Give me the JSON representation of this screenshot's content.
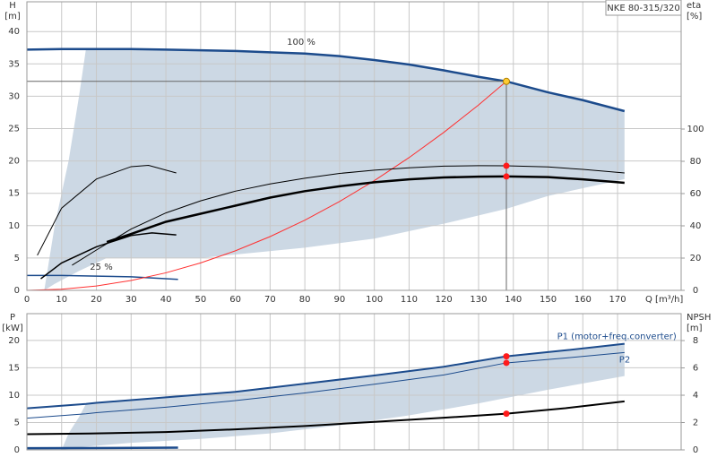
{
  "chart_data": [
    {
      "type": "line",
      "title": "NKE 80-315/320",
      "xlabel": "Q [m³/h]",
      "ylabel": "H",
      "ylabel_unit": "[m]",
      "y2label": "eta",
      "y2label_unit": "[%]",
      "xlim": [
        0,
        188.3
      ],
      "ylim": [
        0,
        44.6
      ],
      "y2lim": [
        0,
        178.9
      ],
      "xticks": [
        0,
        10,
        20,
        30,
        40,
        50,
        60,
        70,
        80,
        90,
        100,
        110,
        120,
        130,
        140,
        150,
        160,
        170
      ],
      "yticks": [
        0,
        5,
        10,
        15,
        20,
        25,
        30,
        35,
        40
      ],
      "y2ticks": [
        0,
        20,
        40,
        60,
        80,
        100
      ],
      "xtick_labels": true,
      "grid": true,
      "annotations": [
        "100 %",
        "25 %"
      ],
      "regions": [
        {
          "color": "#ccd8e4",
          "x": [
            17,
            20,
            30,
            40,
            50,
            60,
            70,
            80,
            90,
            100,
            110,
            120,
            130,
            138,
            150,
            160,
            172,
            172,
            150,
            138,
            120,
            100,
            80,
            50,
            23,
            15,
            8,
            5,
            8,
            12,
            15
          ],
          "values": [
            37.3,
            37.3,
            37.3,
            37.2,
            37.1,
            37.0,
            36.8,
            36.6,
            36.2,
            35.6,
            34.9,
            34.0,
            33.0,
            32.3,
            30.6,
            29.4,
            27.7,
            17.2,
            14.6,
            12.6,
            10.3,
            8,
            6.6,
            5,
            5,
            3,
            1,
            0,
            10,
            20,
            30
          ]
        }
      ],
      "series": [
        {
          "color": "#1c4b8c",
          "width": 2.5,
          "axis": "y",
          "x": [
            0,
            10,
            20,
            30,
            40,
            50,
            60,
            70,
            80,
            90,
            100,
            110,
            120,
            130,
            138,
            150,
            160,
            172
          ],
          "values": [
            37.2,
            37.3,
            37.3,
            37.3,
            37.2,
            37.1,
            37.0,
            36.8,
            36.6,
            36.2,
            35.6,
            34.9,
            34.0,
            33.0,
            32.3,
            30.6,
            29.4,
            27.7
          ]
        },
        {
          "color": "#1c4b8c",
          "width": 1.5,
          "axis": "y",
          "x": [
            0,
            10,
            20,
            30,
            43.5
          ],
          "values": [
            2.3,
            2.3,
            2.2,
            2.1,
            1.7
          ]
        },
        {
          "color": "#ff3030",
          "width": 1,
          "axis": "y",
          "x": [
            0,
            10,
            20,
            30,
            40,
            50,
            60,
            70,
            80,
            90,
            100,
            110,
            120,
            130,
            138
          ],
          "values": [
            0,
            0.17,
            0.68,
            1.53,
            2.71,
            4.24,
            6.11,
            8.31,
            10.85,
            13.74,
            16.96,
            20.52,
            24.42,
            28.66,
            32.3
          ]
        },
        {
          "color": "#000000",
          "width": 1,
          "axis": "y2",
          "x": [
            13,
            20,
            30,
            40,
            50,
            60,
            70,
            80,
            90,
            100,
            110,
            120,
            130,
            138,
            150,
            160,
            172
          ],
          "values": [
            15.6,
            25,
            38,
            48,
            55.5,
            61.5,
            66,
            69.5,
            72.5,
            74.5,
            76,
            77,
            77.3,
            77.2,
            76.5,
            75,
            72.8
          ]
        },
        {
          "color": "#000000",
          "width": 2.5,
          "axis": "y2",
          "x": [
            23,
            30,
            40,
            50,
            60,
            70,
            80,
            90,
            100,
            110,
            120,
            130,
            138,
            150,
            160,
            172
          ],
          "values": [
            30,
            35,
            42.5,
            47.5,
            52.5,
            57.5,
            61.5,
            64.5,
            67,
            68.8,
            70,
            70.5,
            70.6,
            70.2,
            68.8,
            66.7
          ]
        },
        {
          "color": "#000000",
          "width": 1,
          "axis": "y2",
          "x": [
            3,
            10,
            20,
            30,
            35,
            43
          ],
          "values": [
            21.7,
            51,
            69,
            76.7,
            77.5,
            72.8
          ]
        },
        {
          "color": "#000000",
          "width": 1.5,
          "axis": "y2",
          "x": [
            4,
            10,
            20,
            30,
            36,
            43
          ],
          "values": [
            7.2,
            17,
            27,
            34,
            35.6,
            34.4
          ]
        }
      ],
      "points": [
        {
          "x": 138,
          "y": 32.3,
          "axis": "y",
          "color": "#ffcc33",
          "crosshair": true
        },
        {
          "x": 138,
          "y": 77.2,
          "axis": "y2",
          "color": "#ff1a1a",
          "crosshair": false
        },
        {
          "x": 138,
          "y": 70.6,
          "axis": "y2",
          "color": "#ff1a1a",
          "crosshair": false
        }
      ]
    },
    {
      "type": "line",
      "ylabel": "P",
      "ylabel_unit": "[kW]",
      "y2label": "NPSH",
      "y2label_unit": "[m]",
      "xlim": [
        0,
        188.3
      ],
      "ylim": [
        0,
        24.9
      ],
      "y2lim": [
        0,
        9.97
      ],
      "xticks": [
        0,
        10,
        20,
        30,
        40,
        50,
        60,
        70,
        80,
        90,
        100,
        110,
        120,
        130,
        140,
        150,
        160,
        170
      ],
      "yticks": [
        0,
        5,
        10,
        15,
        20
      ],
      "y2ticks": [
        0,
        2,
        4,
        6,
        8
      ],
      "xtick_labels": false,
      "grid": true,
      "regions": [
        {
          "color": "#ccd8e4",
          "x": [
            17,
            20,
            40,
            60,
            80,
            100,
            120,
            138,
            155,
            172,
            172,
            150,
            130,
            110,
            90,
            70,
            50,
            30,
            17,
            10,
            12,
            15
          ],
          "values": [
            8.4,
            8.6,
            9.6,
            10.6,
            12.1,
            13.6,
            15.2,
            17.1,
            18.2,
            19.4,
            13.5,
            11,
            8.5,
            6.3,
            4.5,
            3,
            2,
            1.3,
            0.6,
            0,
            3,
            6
          ]
        }
      ],
      "series": [
        {
          "name": "P1 (motor+freq.converter)",
          "color": "#1c4b8c",
          "width": 2,
          "axis": "y",
          "x": [
            0,
            17,
            20,
            40,
            60,
            80,
            100,
            120,
            138,
            155,
            172
          ],
          "values": [
            7.6,
            8.4,
            8.6,
            9.6,
            10.6,
            12.1,
            13.6,
            15.2,
            17.1,
            18.2,
            19.4
          ]
        },
        {
          "name": "P2",
          "color": "#1c4b8c",
          "width": 1,
          "axis": "y",
          "x": [
            0,
            17,
            20,
            40,
            60,
            80,
            100,
            120,
            138,
            155,
            172
          ],
          "values": [
            5.8,
            6.6,
            6.8,
            7.8,
            9.0,
            10.4,
            12.0,
            13.7,
            15.9,
            16.8,
            17.8
          ]
        },
        {
          "color": "#000000",
          "width": 2,
          "axis": "y2",
          "x": [
            0,
            18,
            40,
            60,
            80,
            100,
            120,
            138,
            155,
            172
          ],
          "values": [
            1.15,
            1.2,
            1.3,
            1.5,
            1.75,
            2.05,
            2.35,
            2.65,
            3.05,
            3.55
          ]
        },
        {
          "color": "#1c4b8c",
          "width": 2.5,
          "axis": "y",
          "x": [
            0,
            43.5
          ],
          "values": [
            0.3,
            0.4
          ]
        }
      ],
      "points": [
        {
          "x": 138,
          "y": 17.1,
          "axis": "y",
          "color": "#ff1a1a",
          "crosshair": false
        },
        {
          "x": 138,
          "y": 15.9,
          "axis": "y",
          "color": "#ff1a1a",
          "crosshair": false
        },
        {
          "x": 138,
          "y": 2.65,
          "axis": "y2",
          "color": "#ff1a1a",
          "crosshair": false
        }
      ]
    }
  ]
}
